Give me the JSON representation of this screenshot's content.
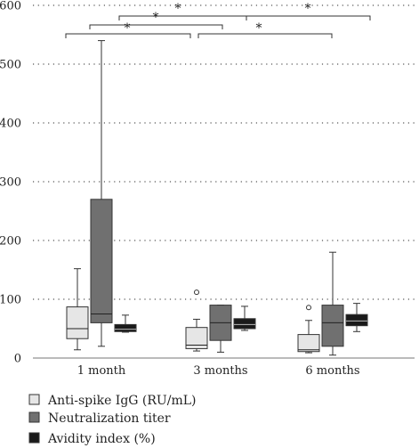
{
  "chart_data": {
    "type": "box",
    "title": "",
    "xlabel": "",
    "ylabel": "",
    "ylim": [
      0,
      600
    ],
    "yticks": [
      0,
      100,
      200,
      300,
      400,
      500,
      600
    ],
    "categories": [
      "1 month",
      "3 months",
      "6 months"
    ],
    "grid": "horizontal dotted",
    "legend_position": "bottom-left",
    "series": [
      {
        "name": "Anti-spike IgG (RU/mL)",
        "color": "#e6e6e6",
        "boxes": [
          {
            "whisker_low": 14,
            "q1": 33,
            "median": 50,
            "q3": 87,
            "whisker_high": 152,
            "outliers": []
          },
          {
            "whisker_low": 12,
            "q1": 16,
            "median": 22,
            "q3": 52,
            "whisker_high": 66,
            "outliers": [
              112
            ]
          },
          {
            "whisker_low": 9,
            "q1": 11,
            "median": 14,
            "q3": 40,
            "whisker_high": 64,
            "outliers": [
              86
            ]
          }
        ]
      },
      {
        "name": "Neutralization titer",
        "color": "#707070",
        "boxes": [
          {
            "whisker_low": 20,
            "q1": 60,
            "median": 75,
            "q3": 270,
            "whisker_high": 540,
            "outliers": []
          },
          {
            "whisker_low": 10,
            "q1": 30,
            "median": 60,
            "q3": 90,
            "whisker_high": 90,
            "outliers": []
          },
          {
            "whisker_low": 5,
            "q1": 20,
            "median": 60,
            "q3": 90,
            "whisker_high": 180,
            "outliers": []
          }
        ]
      },
      {
        "name": "Avidity index (%)",
        "color": "#1a1a1a",
        "boxes": [
          {
            "whisker_low": 44,
            "q1": 45,
            "median": 49,
            "q3": 57,
            "whisker_high": 73,
            "outliers": []
          },
          {
            "whisker_low": 47,
            "q1": 50,
            "median": 57,
            "q3": 67,
            "whisker_high": 88,
            "outliers": []
          },
          {
            "whisker_low": 45,
            "q1": 55,
            "median": 63,
            "q3": 74,
            "whisker_high": 93,
            "outliers": []
          }
        ]
      }
    ],
    "significance": [
      {
        "from_category": 0,
        "to_category": 1,
        "label": "*"
      },
      {
        "from_category": 0,
        "to_category": 1,
        "label": "*"
      },
      {
        "from_category": 0,
        "to_category": 1,
        "label": "*"
      },
      {
        "from_category": 1,
        "to_category": 2,
        "label": "*"
      },
      {
        "from_category": 1,
        "to_category": 2,
        "label": "*"
      }
    ]
  }
}
